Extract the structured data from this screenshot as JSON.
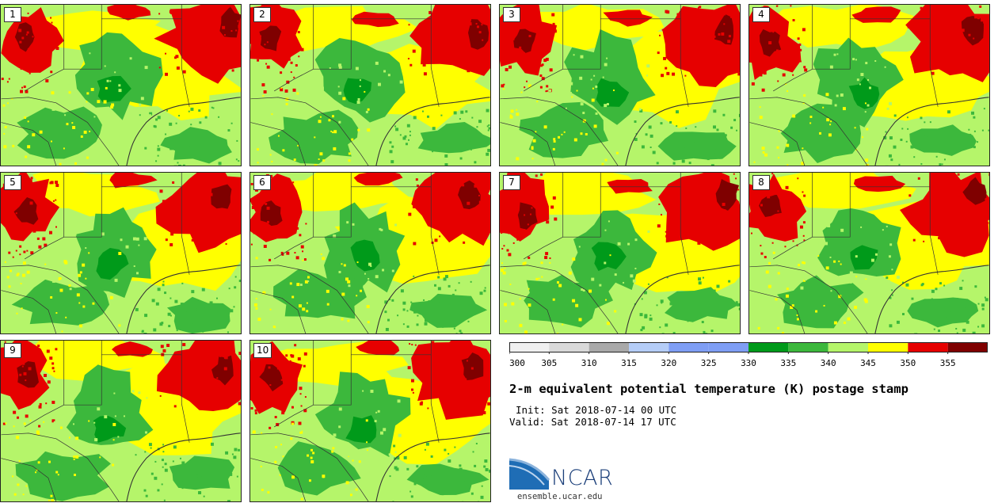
{
  "figure": {
    "title": "2-m equivalent potential temperature (K) postage stamp",
    "init_label": "Init:",
    "init_time": "Sat 2018-07-14 00 UTC",
    "valid_label": "Valid:",
    "valid_time": "Sat 2018-07-14 17 UTC"
  },
  "members": [
    "1",
    "2",
    "3",
    "4",
    "5",
    "6",
    "7",
    "8",
    "9",
    "10"
  ],
  "colorbar": {
    "bins": [
      {
        "from": 300,
        "to": 305,
        "color": "#f0f0f0"
      },
      {
        "from": 305,
        "to": 310,
        "color": "#d9d9d9"
      },
      {
        "from": 310,
        "to": 315,
        "color": "#a9a9a9"
      },
      {
        "from": 315,
        "to": 320,
        "color": "#b5cdf7"
      },
      {
        "from": 320,
        "to": 325,
        "color": "#7f9ef4"
      },
      {
        "from": 325,
        "to": 330,
        "color": "#7f9ef4"
      },
      {
        "from": 330,
        "to": 335,
        "color": "#009a1a"
      },
      {
        "from": 335,
        "to": 340,
        "color": "#3cb83c"
      },
      {
        "from": 340,
        "to": 345,
        "color": "#b5f56a"
      },
      {
        "from": 345,
        "to": 350,
        "color": "#ffff00"
      },
      {
        "from": 350,
        "to": 355,
        "color": "#e60000"
      },
      {
        "from": 355,
        "to": 360,
        "color": "#7f0000"
      }
    ],
    "tick_labels": [
      "300",
      "305",
      "310",
      "315",
      "320",
      "325",
      "330",
      "335",
      "340",
      "345",
      "350",
      "355"
    ]
  },
  "colors": {
    "dark_green": "#009a1a",
    "green": "#3cb83c",
    "light_green": "#b5f56a",
    "yellow": "#ffff00",
    "red": "#e60000",
    "dark_red": "#7f0000",
    "boundary": "#333333"
  },
  "logo": {
    "wordmark": "NCAR",
    "url": "ensemble.ucar.edu"
  }
}
